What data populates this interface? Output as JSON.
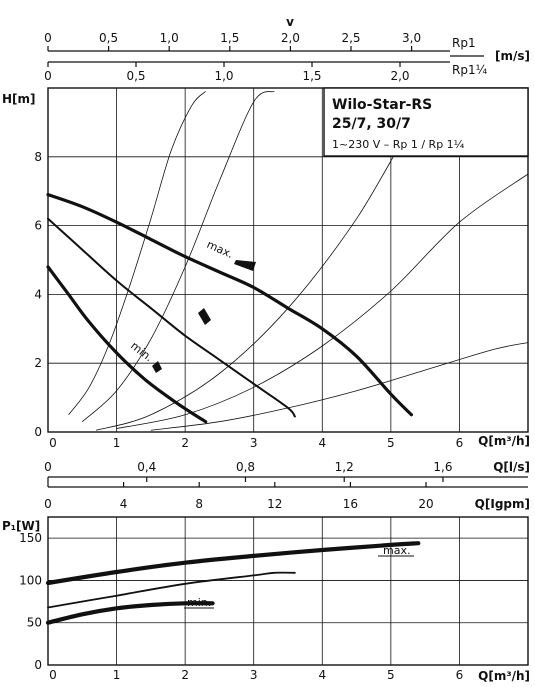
{
  "chart_data": [
    {
      "type": "line",
      "title": "Wilo-Star-RS",
      "subtitle": "25/7, 30/7",
      "note": "1~230 V – Rp 1 / Rp 1¼",
      "xlabel": "Q[m³/h]",
      "ylabel": "H[m]",
      "xlim": [
        0,
        7
      ],
      "ylim": [
        0,
        10
      ],
      "xticks": [
        0,
        1,
        2,
        3,
        4,
        5,
        6
      ],
      "yticks": [
        0,
        2,
        4,
        6,
        8
      ],
      "grid": true,
      "series": [
        {
          "name": "max.",
          "x": [
            0,
            0.5,
            1,
            1.5,
            2,
            2.5,
            3,
            3.5,
            4,
            4.5,
            5,
            5.3
          ],
          "y": [
            6.9,
            6.55,
            6.1,
            5.6,
            5.1,
            4.65,
            4.2,
            3.6,
            3.0,
            2.2,
            1.1,
            0.5
          ]
        },
        {
          "name": "",
          "x": [
            0,
            0.5,
            1,
            1.5,
            2,
            2.5,
            3,
            3.5,
            3.6
          ],
          "y": [
            6.2,
            5.3,
            4.4,
            3.6,
            2.8,
            2.1,
            1.4,
            0.7,
            0.45
          ]
        },
        {
          "name": "min.",
          "x": [
            0,
            0.3,
            0.6,
            1,
            1.4,
            1.8,
            2.1,
            2.3
          ],
          "y": [
            4.8,
            4.0,
            3.2,
            2.3,
            1.55,
            0.95,
            0.55,
            0.3
          ]
        }
      ],
      "system_curves": [
        {
          "x": [
            0.3,
            0.6,
            0.9,
            1.2,
            1.5,
            1.8,
            2.1,
            2.3
          ],
          "y": [
            0.5,
            1.3,
            2.6,
            4.3,
            6.2,
            8.2,
            9.5,
            9.9
          ]
        },
        {
          "x": [
            0.5,
            1,
            1.5,
            2,
            2.5,
            3,
            3.3
          ],
          "y": [
            0.3,
            1.2,
            2.7,
            4.8,
            7.3,
            9.6,
            9.9
          ]
        },
        {
          "x": [
            0.7,
            1.5,
            2.5,
            3.5,
            4.5,
            5.5,
            6.0
          ],
          "y": [
            0.05,
            0.5,
            1.7,
            3.6,
            6.2,
            9.5,
            9.9
          ]
        },
        {
          "x": [
            1.0,
            2.0,
            3.0,
            4.0,
            5.0,
            6.0,
            7.0
          ],
          "y": [
            0.1,
            0.5,
            1.3,
            2.5,
            4.1,
            6.1,
            7.5
          ]
        },
        {
          "x": [
            1.5,
            2.5,
            3.5,
            4.5,
            5.5,
            6.5,
            7.0
          ],
          "y": [
            0.05,
            0.3,
            0.7,
            1.2,
            1.8,
            2.4,
            2.6
          ]
        }
      ],
      "labels": [
        "max.",
        "min."
      ]
    },
    {
      "type": "line",
      "xlabel": "Q[m³/h]",
      "ylabel": "P₁[W]",
      "xlim": [
        0,
        7
      ],
      "ylim": [
        0,
        175
      ],
      "xticks": [
        0,
        1,
        2,
        3,
        4,
        5,
        6
      ],
      "yticks": [
        0,
        50,
        100,
        150
      ],
      "grid": true,
      "series": [
        {
          "name": "max.",
          "x": [
            0,
            1,
            2,
            3,
            4,
            5,
            5.4
          ],
          "y": [
            97,
            110,
            121,
            129,
            136,
            142,
            144
          ]
        },
        {
          "name": "",
          "x": [
            0,
            1,
            2,
            3,
            3.3,
            3.6
          ],
          "y": [
            68,
            82,
            96,
            106,
            109,
            109
          ]
        },
        {
          "name": "min.",
          "x": [
            0,
            0.5,
            1,
            1.5,
            2,
            2.4
          ],
          "y": [
            50,
            60,
            67,
            71,
            73,
            73
          ]
        }
      ],
      "labels": [
        "max.",
        "min."
      ]
    }
  ],
  "scales": {
    "v_label": "v",
    "v_unit": "[m/s]",
    "rp1_label": "Rp1",
    "rp1_ticks": [
      "0",
      "0,5",
      "1,0",
      "1,5",
      "2,0",
      "2,5",
      "3,0"
    ],
    "rp114_label": "Rp1¼",
    "rp114_ticks": [
      "0",
      "0,5",
      "1,0",
      "1,5",
      "2,0"
    ],
    "ls_label": "Q[l/s]",
    "ls_ticks": [
      "0",
      "0,4",
      "0,8",
      "1,2",
      "1,6"
    ],
    "igpm_label": "Q[Igpm]",
    "igpm_ticks": [
      "0",
      "4",
      "8",
      "12",
      "16",
      "20"
    ]
  }
}
